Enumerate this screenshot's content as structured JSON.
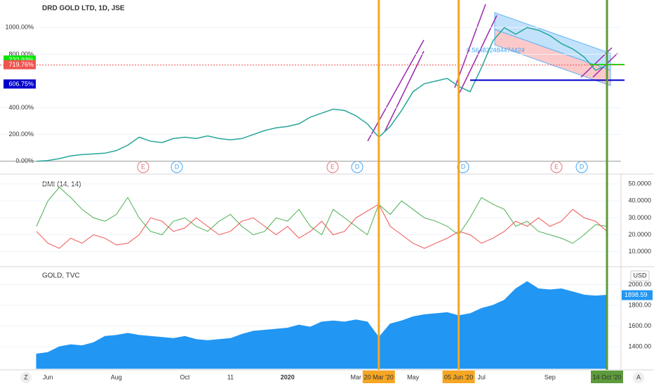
{
  "chart_data": [
    {
      "type": "line",
      "title": "DRD GOLD LTD, 1D, JSE",
      "ylim": [
        -80,
        1180
      ],
      "yticks": [
        {
          "value": 0,
          "label": "0.00%"
        },
        {
          "value": 200,
          "label": "200.00%"
        },
        {
          "value": 400,
          "label": "400.00%"
        },
        {
          "value": 800,
          "label": "800.00%"
        },
        {
          "value": 1000,
          "label": "1000.00%"
        }
      ],
      "price_tags": [
        {
          "value": 722.93,
          "label": "722.93%",
          "color": "#00e600"
        },
        {
          "value": 719.76,
          "label": "719.76%",
          "color": "#ef5350"
        },
        {
          "value": 606.75,
          "label": "606.75%",
          "color": "#0000cc"
        }
      ],
      "annotation": "0.564822484474424",
      "events": [
        "E",
        "D",
        "E",
        "D",
        "D",
        "E",
        "D"
      ],
      "series": [
        {
          "color": "#26a69a",
          "values": [
            0,
            5,
            20,
            40,
            50,
            55,
            60,
            80,
            120,
            180,
            150,
            140,
            170,
            180,
            170,
            190,
            170,
            160,
            170,
            200,
            230,
            250,
            260,
            280,
            330,
            360,
            390,
            380,
            340,
            280,
            180,
            260,
            380,
            520,
            580,
            600,
            620,
            560,
            520,
            700,
            900,
            1000,
            950,
            1000,
            980,
            940,
            880,
            840,
            780,
            680,
            719.76
          ]
        }
      ]
    },
    {
      "type": "line",
      "title": "DMI (14, 14)",
      "ylim": [
        2,
        55
      ],
      "yticks": [
        {
          "value": 10,
          "label": "10.0000"
        },
        {
          "value": 20,
          "label": "20.0000"
        },
        {
          "value": 30,
          "label": "30.0000"
        },
        {
          "value": 40,
          "label": "40.0000"
        },
        {
          "value": 50,
          "label": "50.0000"
        }
      ],
      "series": [
        {
          "color": "#4caf50",
          "values": [
            25,
            40,
            48,
            42,
            35,
            30,
            28,
            32,
            42,
            30,
            22,
            20,
            28,
            30,
            25,
            22,
            28,
            32,
            25,
            20,
            22,
            30,
            28,
            35,
            25,
            20,
            35,
            30,
            25,
            20,
            38,
            32,
            40,
            35,
            30,
            28,
            25,
            20,
            30,
            42,
            38,
            35,
            25,
            28,
            22,
            20,
            18,
            15,
            20,
            26,
            25
          ]
        },
        {
          "color": "#ef5350",
          "values": [
            22,
            15,
            12,
            18,
            15,
            20,
            18,
            14,
            15,
            20,
            30,
            28,
            22,
            24,
            30,
            25,
            20,
            22,
            28,
            30,
            25,
            20,
            25,
            18,
            22,
            28,
            20,
            22,
            30,
            34,
            38,
            25,
            20,
            15,
            12,
            15,
            18,
            22,
            20,
            15,
            18,
            22,
            28,
            25,
            30,
            25,
            28,
            35,
            30,
            28,
            22
          ]
        }
      ]
    },
    {
      "type": "area",
      "title": "GOLD, TVC",
      "unit": "USD",
      "ylim": [
        1190,
        2140
      ],
      "yticks": [
        {
          "value": 1400,
          "label": "1400.00"
        },
        {
          "value": 1600,
          "label": "1600.00"
        },
        {
          "value": 1800,
          "label": "1800.00"
        },
        {
          "value": 2000,
          "label": "2000.00"
        }
      ],
      "series": [
        {
          "color": "#2196f3",
          "values": [
            1330,
            1345,
            1400,
            1420,
            1410,
            1440,
            1500,
            1510,
            1530,
            1510,
            1500,
            1490,
            1480,
            1500,
            1470,
            1460,
            1470,
            1480,
            1520,
            1550,
            1560,
            1570,
            1580,
            1610,
            1590,
            1640,
            1650,
            1640,
            1660,
            1640,
            1490,
            1620,
            1650,
            1690,
            1710,
            1720,
            1730,
            1700,
            1720,
            1770,
            1800,
            1850,
            1960,
            2030,
            1960,
            1950,
            1960,
            1930,
            1900,
            1890,
            1898.59
          ]
        }
      ]
    }
  ],
  "x_axis": {
    "categories": [
      null,
      "Jun",
      null,
      null,
      null,
      null,
      null,
      "Aug",
      null,
      null,
      null,
      null,
      null,
      "Oct",
      null,
      null,
      null,
      "11",
      null,
      null,
      null,
      null,
      "2020",
      null,
      null,
      null,
      null,
      null,
      "Mar",
      null,
      "20 Mar '20",
      null,
      null,
      "May",
      null,
      null,
      null,
      "05 Jun '20",
      null,
      "Jul",
      null,
      null,
      null,
      null,
      null,
      "Sep",
      null,
      null,
      null,
      null,
      "14 Oct '20"
    ],
    "markers": [
      {
        "category": "20 Mar '20",
        "color": "#f5a623"
      },
      {
        "category": "05 Jun '20",
        "color": "#f5a623"
      },
      {
        "category": "14 Oct '20",
        "color": "#5d9a3c"
      }
    ]
  },
  "ui": {
    "left": "Z",
    "right": "A"
  }
}
